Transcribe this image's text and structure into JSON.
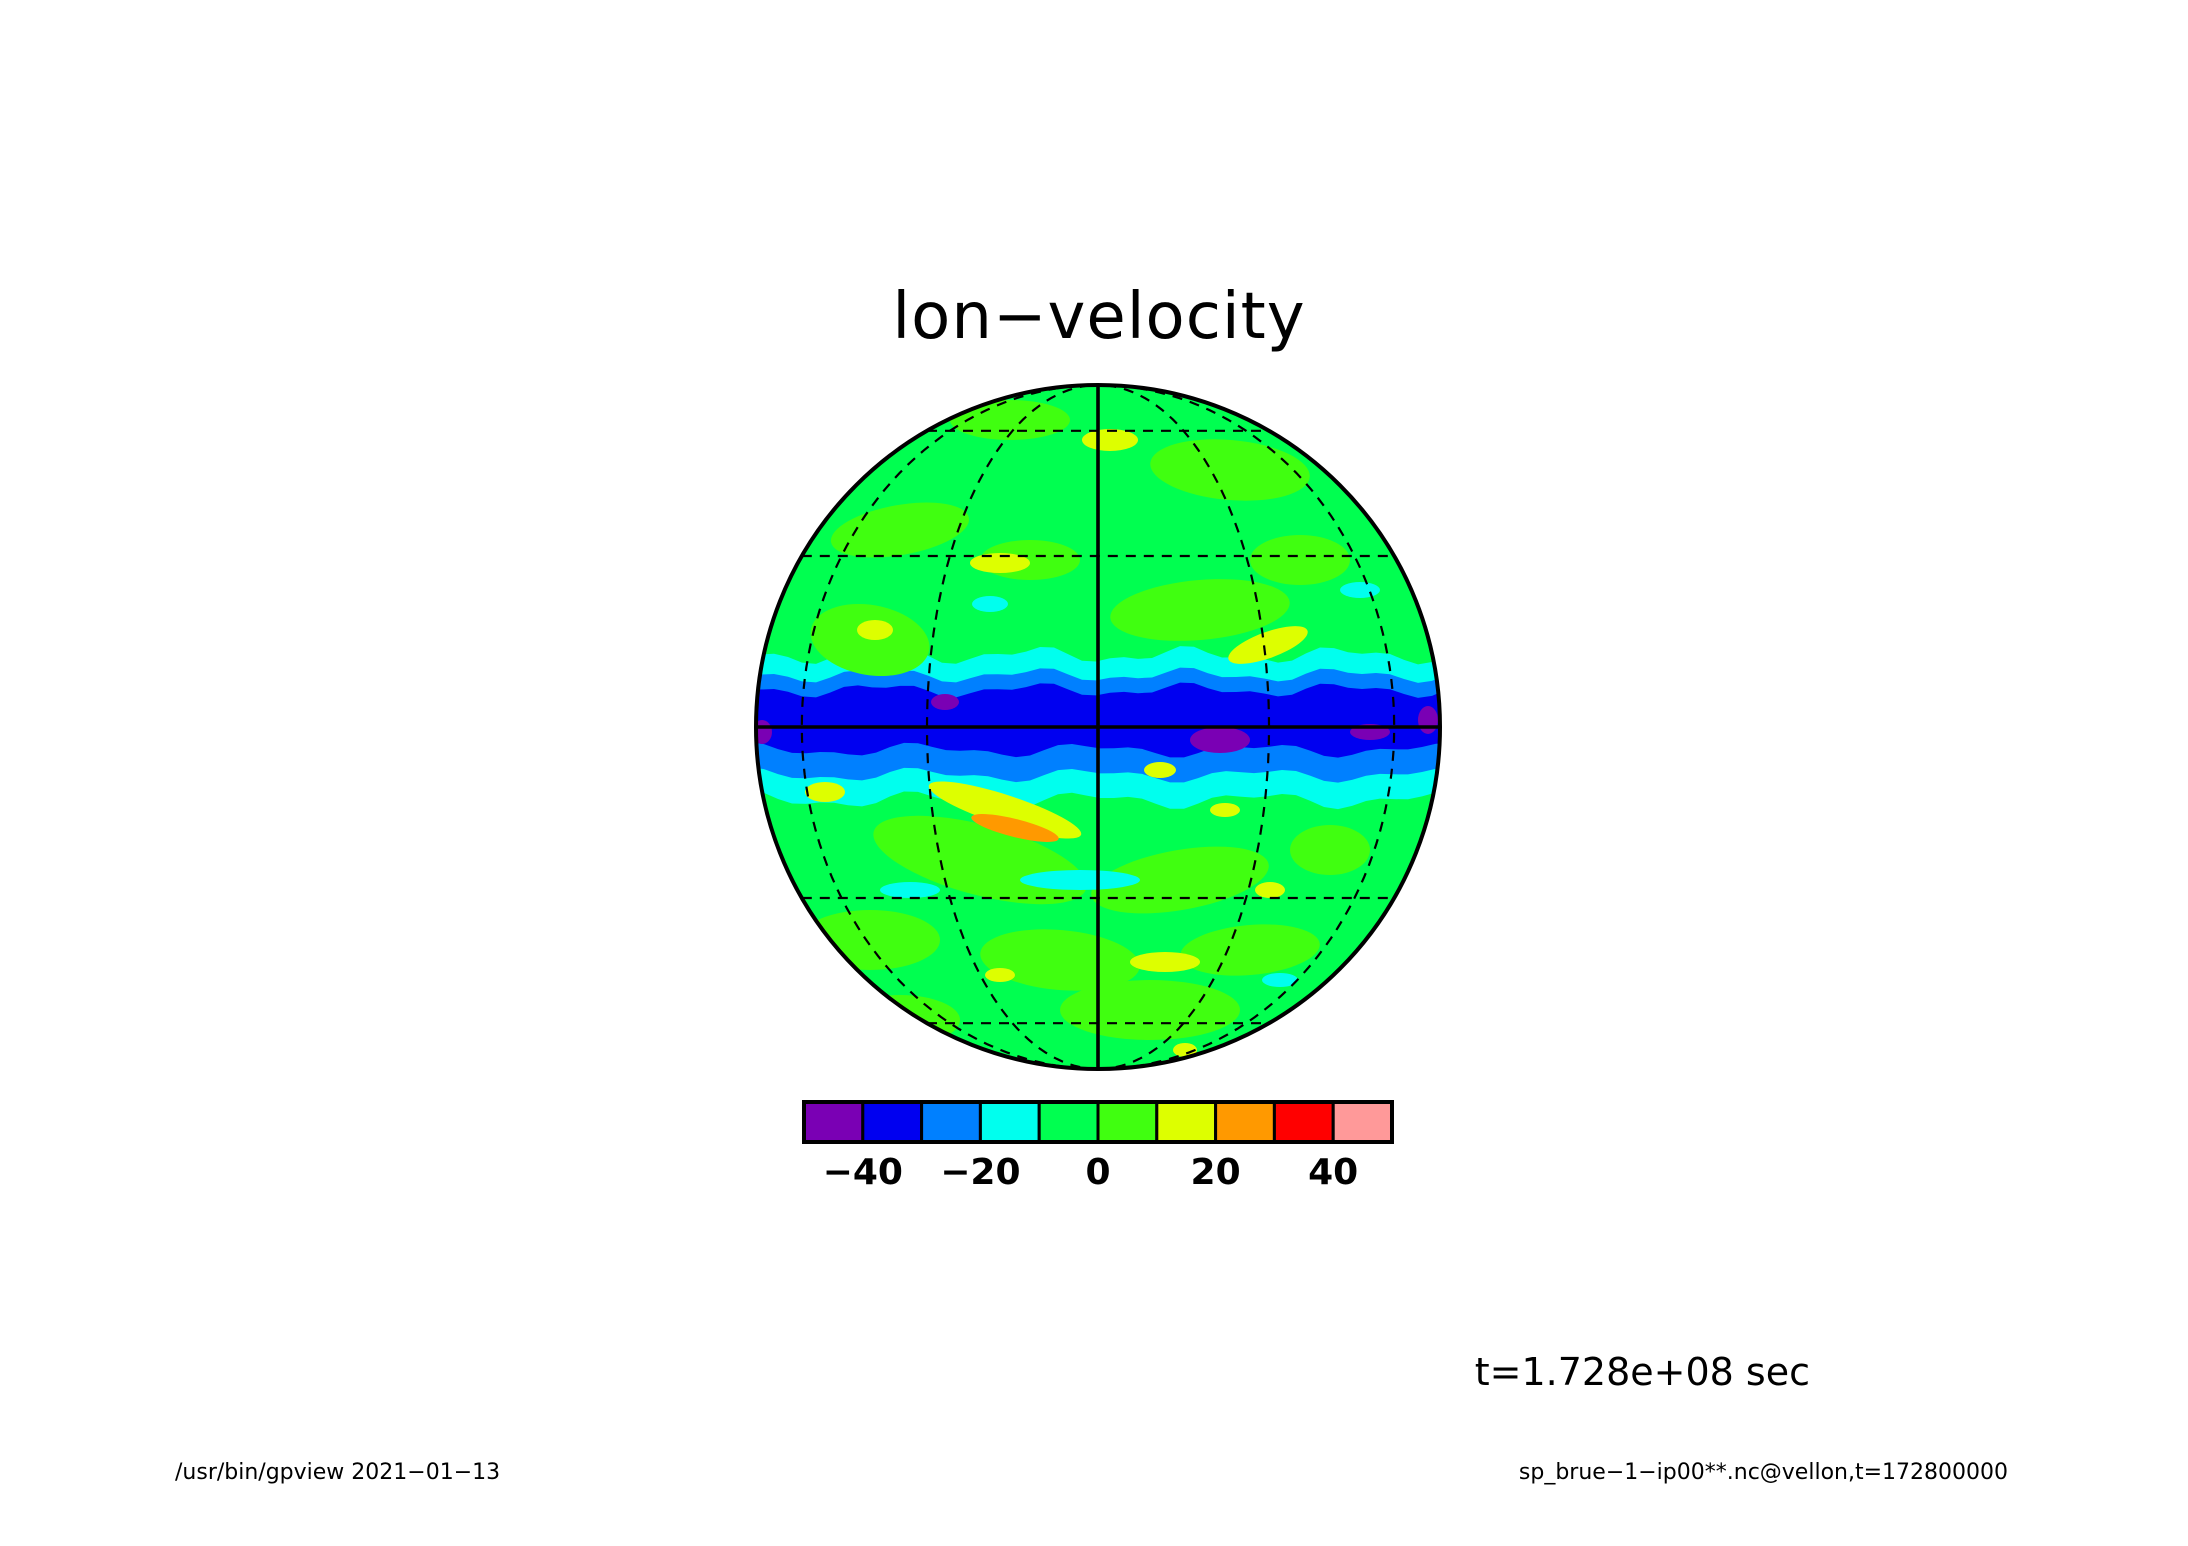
{
  "title": "lon−velocity",
  "time_label": "t=1.728e+08 sec",
  "footer": {
    "left": "/usr/bin/gpview   2021−01−13",
    "right": "sp_brue−1−ip00**.nc@vellon,t=172800000"
  },
  "colorbar": {
    "colors": [
      "#7a00b4",
      "#0000f0",
      "#0080ff",
      "#00ffee",
      "#00ff50",
      "#40ff10",
      "#ddff00",
      "#ff9900",
      "#ff0000",
      "#ff9999"
    ],
    "bounds": [
      -50,
      -40,
      -30,
      -20,
      -10,
      0,
      10,
      20,
      30,
      40,
      50
    ],
    "tick_labels": [
      "−40",
      "−20",
      "0",
      "20",
      "40"
    ],
    "tick_values": [
      -40,
      -20,
      0,
      20,
      40
    ]
  },
  "projection": "orthographic",
  "graticule": {
    "style": "dashed",
    "equator_and_central_meridian": "solid"
  }
}
